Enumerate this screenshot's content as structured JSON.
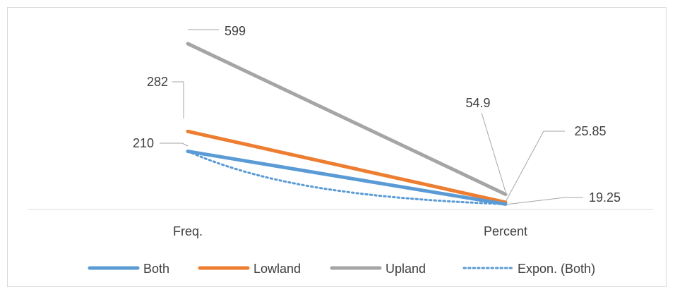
{
  "chart_data": {
    "type": "line",
    "categories": [
      "Freq.",
      "Percent"
    ],
    "series": [
      {
        "name": "Both",
        "values": [
          210,
          19.25
        ],
        "color": "#5b9bd5"
      },
      {
        "name": "Lowland",
        "values": [
          282,
          25.85
        ],
        "color": "#ed7d31"
      },
      {
        "name": "Upland",
        "values": [
          599,
          54.9
        ],
        "color": "#a5a5a5"
      }
    ],
    "trendline": {
      "name": "Expon. (Both)",
      "type": "exponential",
      "base_series": "Both",
      "color": "#5b9bd5"
    },
    "data_labels": [
      "599",
      "282",
      "210",
      "54.9",
      "25.85",
      "19.25"
    ],
    "legend": {
      "position": "bottom",
      "items": [
        "Both",
        "Lowland",
        "Upland",
        "Expon. (Both)"
      ]
    },
    "grid": false,
    "ylim": [
      0,
      660
    ],
    "title": "",
    "xlabel": "",
    "ylabel": ""
  }
}
